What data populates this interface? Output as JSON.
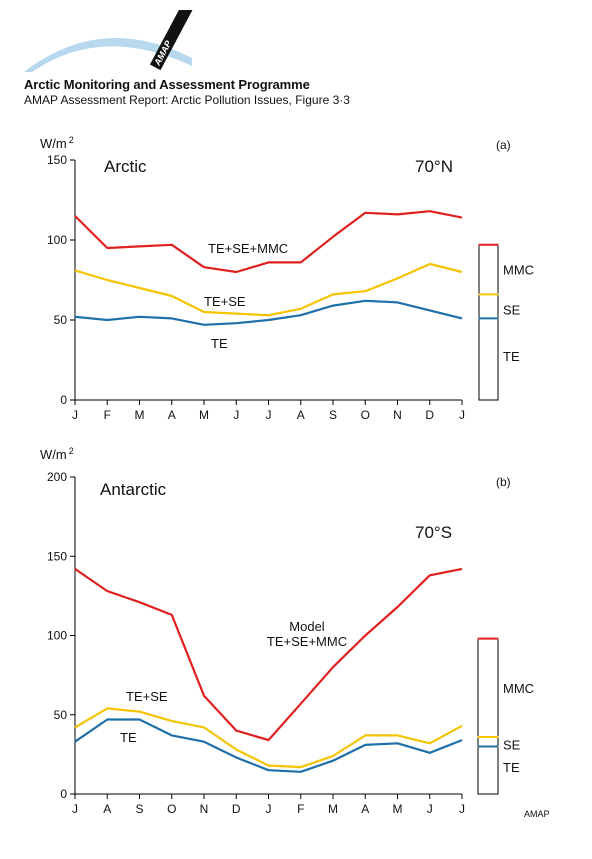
{
  "header": {
    "logo_text": "AMAP",
    "org_title": "Arctic Monitoring and Assessment Programme",
    "report_title": "AMAP Assessment Report: Arctic Pollution Issues, Figure 3·3"
  },
  "footer": {
    "credit": "AMAP"
  },
  "colors": {
    "mmc": "#e02020",
    "se": "#f5c400",
    "te": "#1f6fa8",
    "axis": "#000000"
  },
  "chart_data": [
    {
      "type": "line",
      "panel_label": "(a)",
      "region_label": "Arctic",
      "latitude_label": "70°N",
      "ylabel": "W/m",
      "ylabel_sup": "2",
      "ylim": [
        0,
        150
      ],
      "yticks": [
        0,
        50,
        100,
        150
      ],
      "categories": [
        "J",
        "F",
        "M",
        "A",
        "M",
        "J",
        "J",
        "A",
        "S",
        "O",
        "N",
        "D",
        "J"
      ],
      "series": [
        {
          "name": "TE+SE+MMC",
          "color": "#e02020",
          "values": [
            115,
            95,
            96,
            97,
            83,
            80,
            86,
            86,
            102,
            117,
            116,
            118,
            114
          ]
        },
        {
          "name": "TE+SE",
          "color": "#f5c400",
          "values": [
            81,
            75,
            70,
            65,
            55,
            54,
            53,
            57,
            66,
            68,
            76,
            85,
            80
          ]
        },
        {
          "name": "TE",
          "color": "#1f6fa8",
          "values": [
            52,
            50,
            52,
            51,
            47,
            48,
            50,
            53,
            59,
            62,
            61,
            56,
            51
          ]
        }
      ],
      "bar_legend": {
        "labels": [
          "MMC",
          "SE",
          "TE"
        ],
        "boundaries": [
          0,
          51,
          66,
          97
        ]
      }
    },
    {
      "type": "line",
      "panel_label": "(b)",
      "region_label": "Antarctic",
      "latitude_label": "70°S",
      "ylabel": "W/m",
      "ylabel_sup": "2",
      "ylim": [
        0,
        200
      ],
      "yticks": [
        0,
        50,
        100,
        150,
        200
      ],
      "categories": [
        "J",
        "A",
        "S",
        "O",
        "N",
        "D",
        "J",
        "F",
        "M",
        "A",
        "M",
        "J",
        "J"
      ],
      "series": [
        {
          "name": "TE+SE+MMC",
          "label_lines": [
            "Model",
            "TE+SE+MMC"
          ],
          "color": "#e02020",
          "values": [
            142,
            128,
            121,
            113,
            62,
            40,
            34,
            57,
            80,
            100,
            118,
            138,
            142
          ]
        },
        {
          "name": "TE+SE",
          "color": "#f5c400",
          "values": [
            42,
            54,
            52,
            46,
            42,
            28,
            18,
            17,
            24,
            37,
            37,
            32,
            43
          ]
        },
        {
          "name": "TE",
          "color": "#1f6fa8",
          "values": [
            33,
            47,
            47,
            37,
            33,
            23,
            15,
            14,
            21,
            31,
            32,
            26,
            34
          ]
        }
      ],
      "bar_legend": {
        "labels": [
          "MMC",
          "SE",
          "TE"
        ],
        "boundaries": [
          0,
          30,
          36,
          98
        ]
      }
    }
  ]
}
